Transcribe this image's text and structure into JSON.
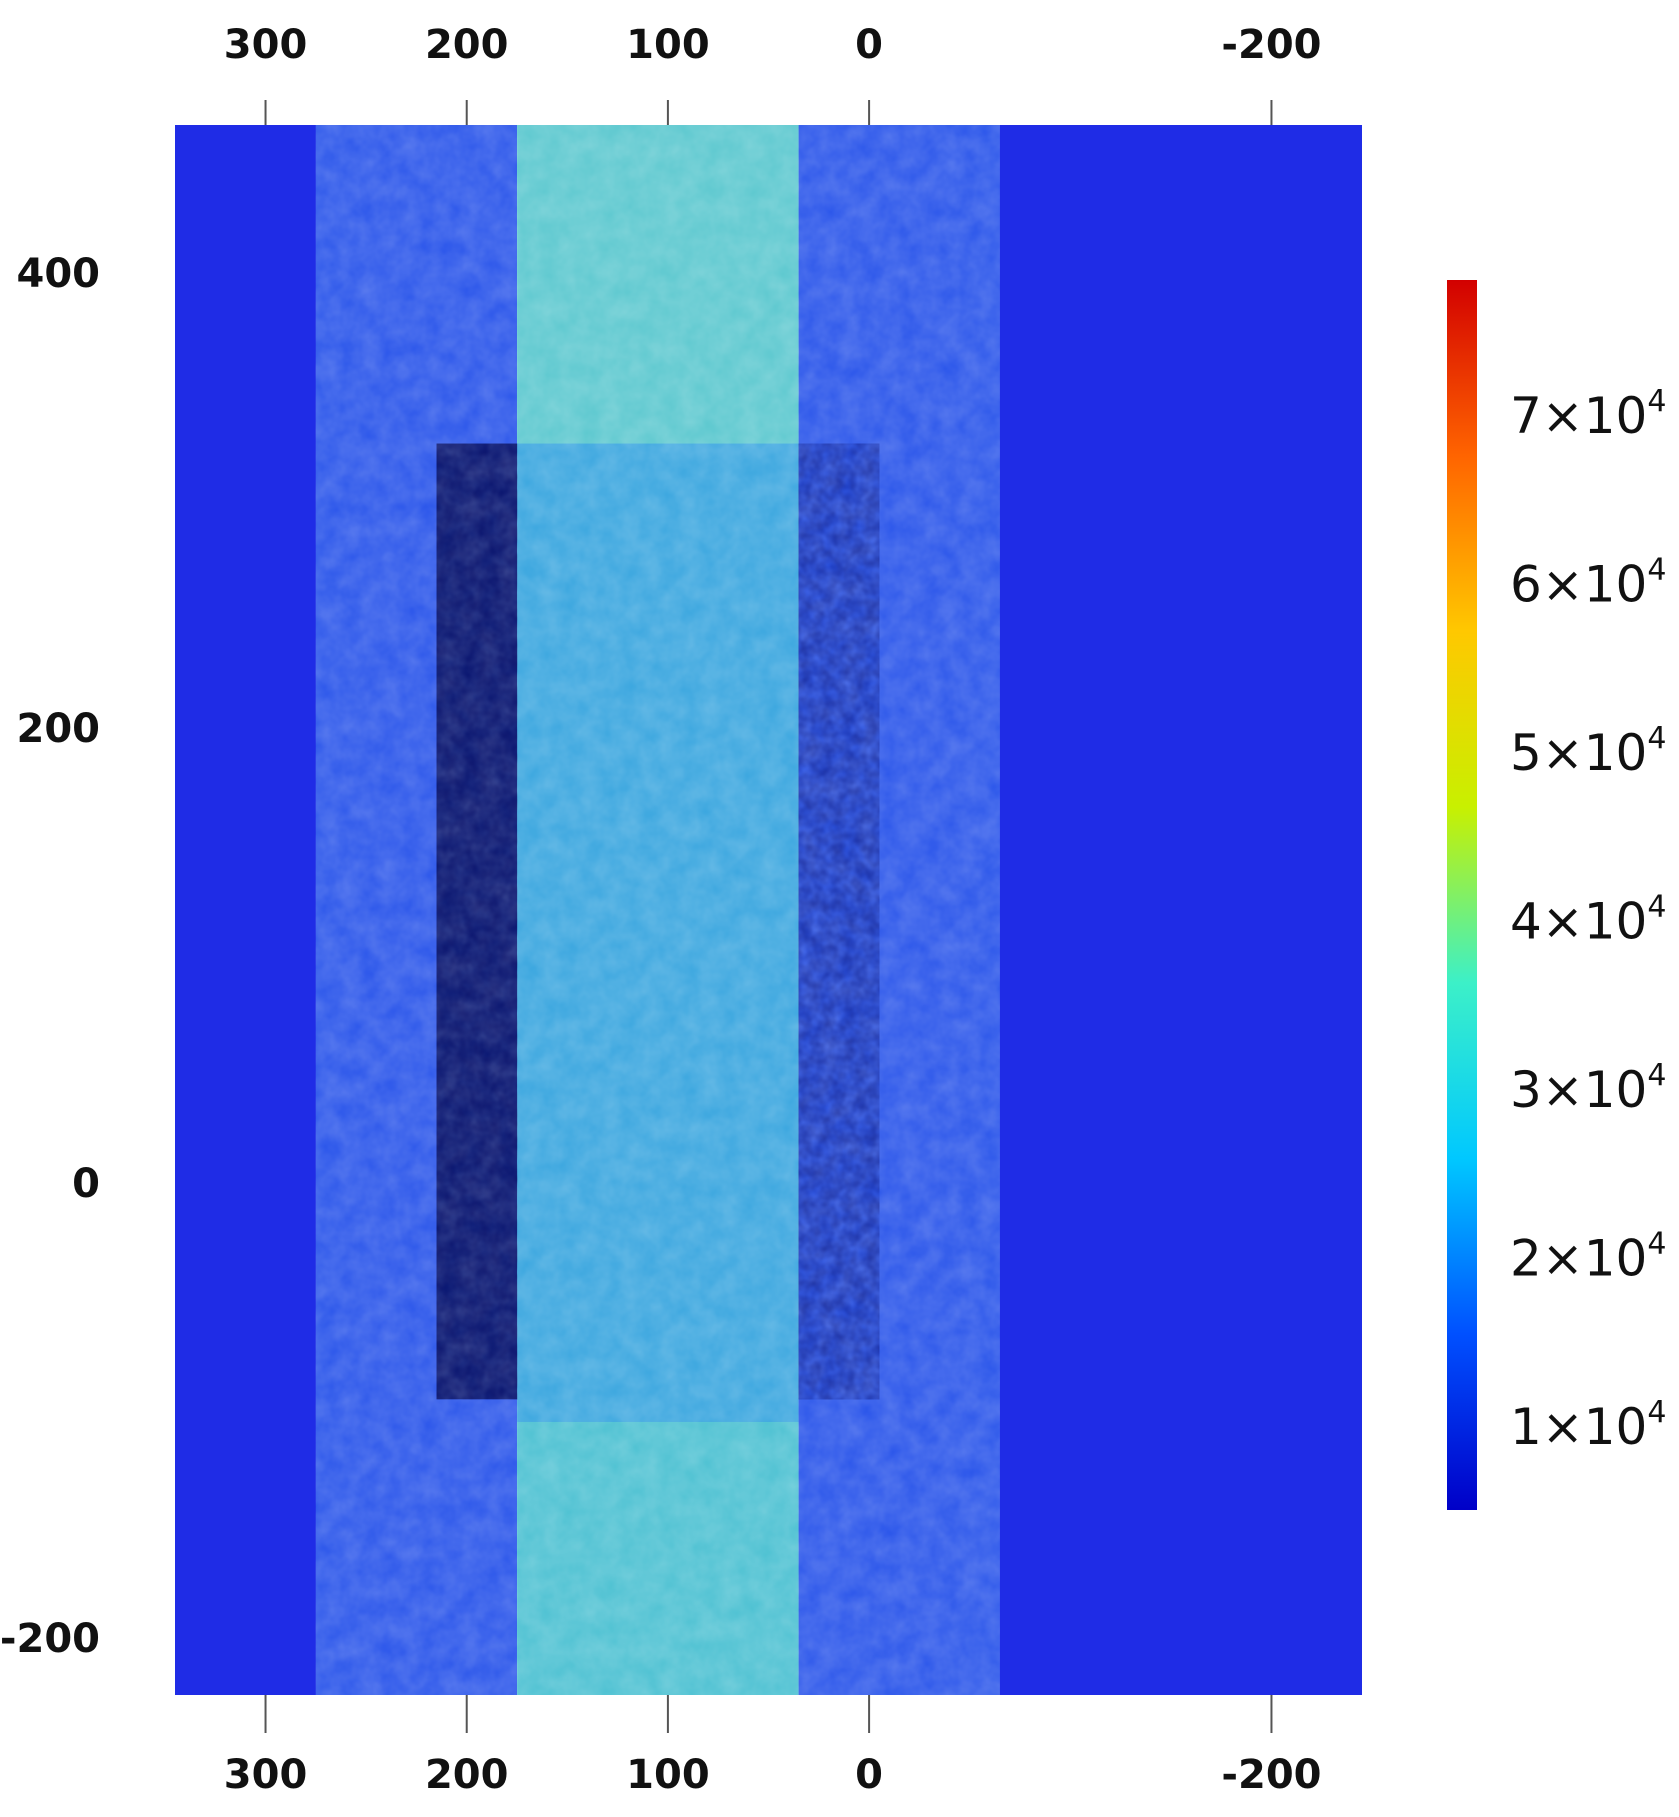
{
  "chart_data": {
    "type": "heatmap",
    "title": "",
    "xlabel": "",
    "ylabel": "",
    "x_axis": {
      "direction": "reversed",
      "ticks_top": [
        300,
        200,
        100,
        0,
        -200
      ],
      "ticks_bottom": [
        300,
        200,
        100,
        0,
        -200
      ],
      "tick_labels_top": [
        "300",
        "200",
        "100",
        "0",
        "-200"
      ],
      "tick_labels_bottom": [
        "300",
        "200",
        "100",
        "0",
        "-200"
      ],
      "range": [
        345,
        -245
      ]
    },
    "y_axis": {
      "ticks": [
        400,
        200,
        0,
        -200
      ],
      "tick_labels": [
        "400",
        "200",
        "0",
        "-200"
      ],
      "range": [
        -225,
        465
      ]
    },
    "colorbar": {
      "colormap": "jet",
      "range": [
        5000,
        78000
      ],
      "ticks": [
        10000,
        20000,
        30000,
        40000,
        50000,
        60000,
        70000
      ],
      "tick_labels": [
        {
          "base": "1×10",
          "exp": "4"
        },
        {
          "base": "2×10",
          "exp": "4"
        },
        {
          "base": "3×10",
          "exp": "4"
        },
        {
          "base": "4×10",
          "exp": "4"
        },
        {
          "base": "5×10",
          "exp": "4"
        },
        {
          "base": "6×10",
          "exp": "4"
        },
        {
          "base": "7×10",
          "exp": "4"
        }
      ],
      "colors": [
        "#0000c8",
        "#0050ff",
        "#00c8ff",
        "#3cf0c8",
        "#c8f000",
        "#ffc800",
        "#ff6400",
        "#d20000"
      ]
    },
    "regions": [
      {
        "name": "outer-plate",
        "x_range": [
          345,
          -245
        ],
        "approx_value": 8000,
        "color": "#1f2ce6"
      },
      {
        "name": "left-band",
        "x_range": [
          275,
          175
        ],
        "approx_value": 12000,
        "color": "#2a55ea"
      },
      {
        "name": "left-dark-zone",
        "x_range": [
          215,
          175
        ],
        "y_range": [
          -95,
          325
        ],
        "approx_value": 6000,
        "color": "#0b1d7a"
      },
      {
        "name": "center-band",
        "x_range": [
          175,
          35
        ],
        "approx_value": 25000,
        "color": "#3aa6df"
      },
      {
        "name": "center-top-zone",
        "x_range": [
          175,
          35
        ],
        "y_range": [
          325,
          465
        ],
        "approx_value": 35000,
        "color": "#5cc8cf"
      },
      {
        "name": "center-bottom-zone",
        "x_range": [
          175,
          35
        ],
        "y_range": [
          -225,
          -105
        ],
        "approx_value": 33000,
        "color": "#4dc1d2"
      },
      {
        "name": "right-dark-zone",
        "x_range": [
          35,
          -5
        ],
        "y_range": [
          -95,
          325
        ],
        "approx_value": 6000,
        "color": "#0b1d7a"
      },
      {
        "name": "right-band",
        "x_range": [
          35,
          -65
        ],
        "approx_value": 12000,
        "color": "#2a55ea"
      }
    ]
  }
}
